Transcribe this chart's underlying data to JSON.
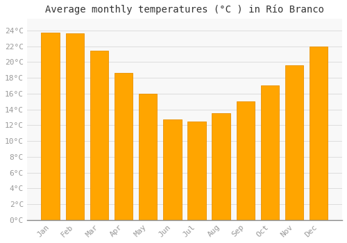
{
  "title": "Average monthly temperatures (°C ) in Río Branco",
  "months": [
    "Jan",
    "Feb",
    "Mar",
    "Apr",
    "May",
    "Jun",
    "Jul",
    "Aug",
    "Sep",
    "Oct",
    "Nov",
    "Dec"
  ],
  "values": [
    23.7,
    23.6,
    21.4,
    18.6,
    16.0,
    12.7,
    12.5,
    13.5,
    15.0,
    17.0,
    19.6,
    22.0
  ],
  "bar_color_main": "#FFA500",
  "bar_color_edge": "#E89000",
  "background_color": "#ffffff",
  "plot_bg_color": "#f8f8f8",
  "grid_color": "#dddddd",
  "ytick_labels": [
    "0°C",
    "2°C",
    "4°C",
    "6°C",
    "8°C",
    "10°C",
    "12°C",
    "14°C",
    "16°C",
    "18°C",
    "20°C",
    "22°C",
    "24°C"
  ],
  "ytick_values": [
    0,
    2,
    4,
    6,
    8,
    10,
    12,
    14,
    16,
    18,
    20,
    22,
    24
  ],
  "ylim": [
    0,
    25.5
  ],
  "title_fontsize": 10,
  "tick_fontsize": 8,
  "tick_color": "#999999",
  "spine_color": "#999999",
  "figsize": [
    5.0,
    3.5
  ],
  "dpi": 100
}
